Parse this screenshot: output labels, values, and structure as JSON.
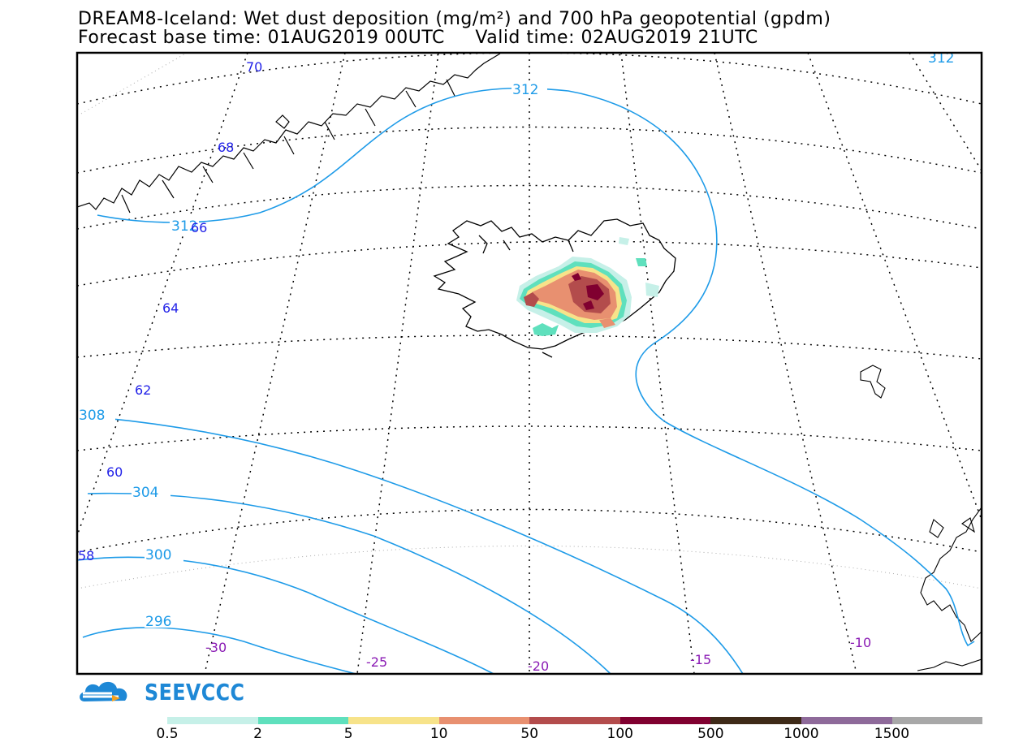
{
  "title": {
    "line1": "DREAM8-Iceland: Wet dust deposition (mg/m²) and 700 hPa geopotential (gpdm)",
    "line2": "Forecast base time: 01AUG2019 00UTC     Valid time: 02AUG2019 21UTC"
  },
  "latitude_labels": [
    "70",
    "68",
    "66",
    "64",
    "62",
    "60",
    "58"
  ],
  "longitude_labels": [
    "-30",
    "-25",
    "-20",
    "-15",
    "-10"
  ],
  "contour_labels": [
    "312",
    "312",
    "312",
    "308",
    "304",
    "300",
    "296"
  ],
  "logo": {
    "text": "SEEVCCC",
    "icon": "cloud-logo-icon"
  },
  "legend": {
    "thresholds": [
      "0.5",
      "2",
      "5",
      "10",
      "50",
      "100",
      "500",
      "1000",
      "1500"
    ],
    "colors": [
      "#c6f0e8",
      "#5fe0bd",
      "#f7e38a",
      "#e89070",
      "#b34c4c",
      "#800030",
      "#3e2a18",
      "#8e6a9a",
      "#a8a8a8"
    ]
  },
  "colors": {
    "contour": "#1e9be8",
    "latitude_label": "#2222e8",
    "longitude_label": "#8a1ab4",
    "coastline": "#000000"
  }
}
